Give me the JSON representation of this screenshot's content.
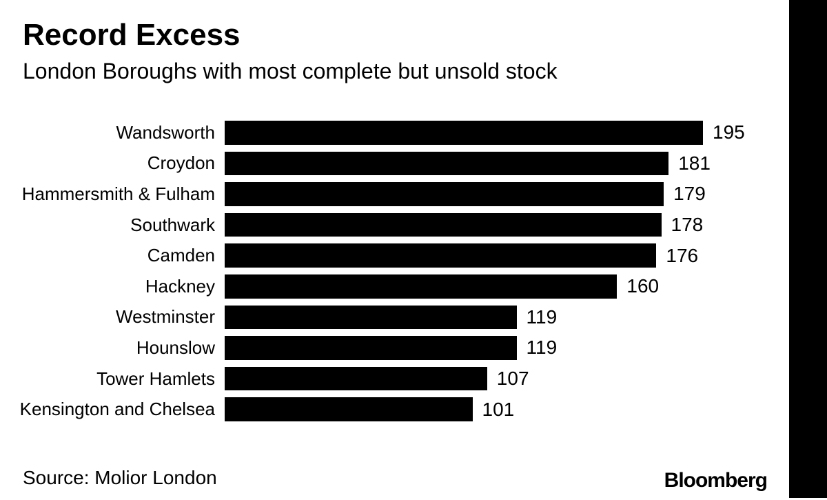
{
  "header": {
    "title": "Record Excess",
    "subtitle": "London Boroughs with most complete but unsold stock"
  },
  "chart_data": {
    "type": "bar",
    "orientation": "horizontal",
    "title": "Record Excess",
    "subtitle": "London Boroughs with most complete but unsold stock",
    "categories": [
      "Wandsworth",
      "Croydon",
      "Hammersmith & Fulham",
      "Southwark",
      "Camden",
      "Hackney",
      "Westminster",
      "Hounslow",
      "Tower Hamlets",
      "Kensington and Chelsea"
    ],
    "values": [
      195,
      181,
      179,
      178,
      176,
      160,
      119,
      119,
      107,
      101
    ],
    "xlim": [
      0,
      195
    ],
    "value_labels_shown": true,
    "grid": "off",
    "legend": "none",
    "axis_lines": "none"
  },
  "footer": {
    "source": "Source: Molior London",
    "brand": "Bloomberg"
  },
  "colors": {
    "background": "#ffffff",
    "bar": "#000000",
    "text": "#000000",
    "right_strip": "#000000"
  }
}
